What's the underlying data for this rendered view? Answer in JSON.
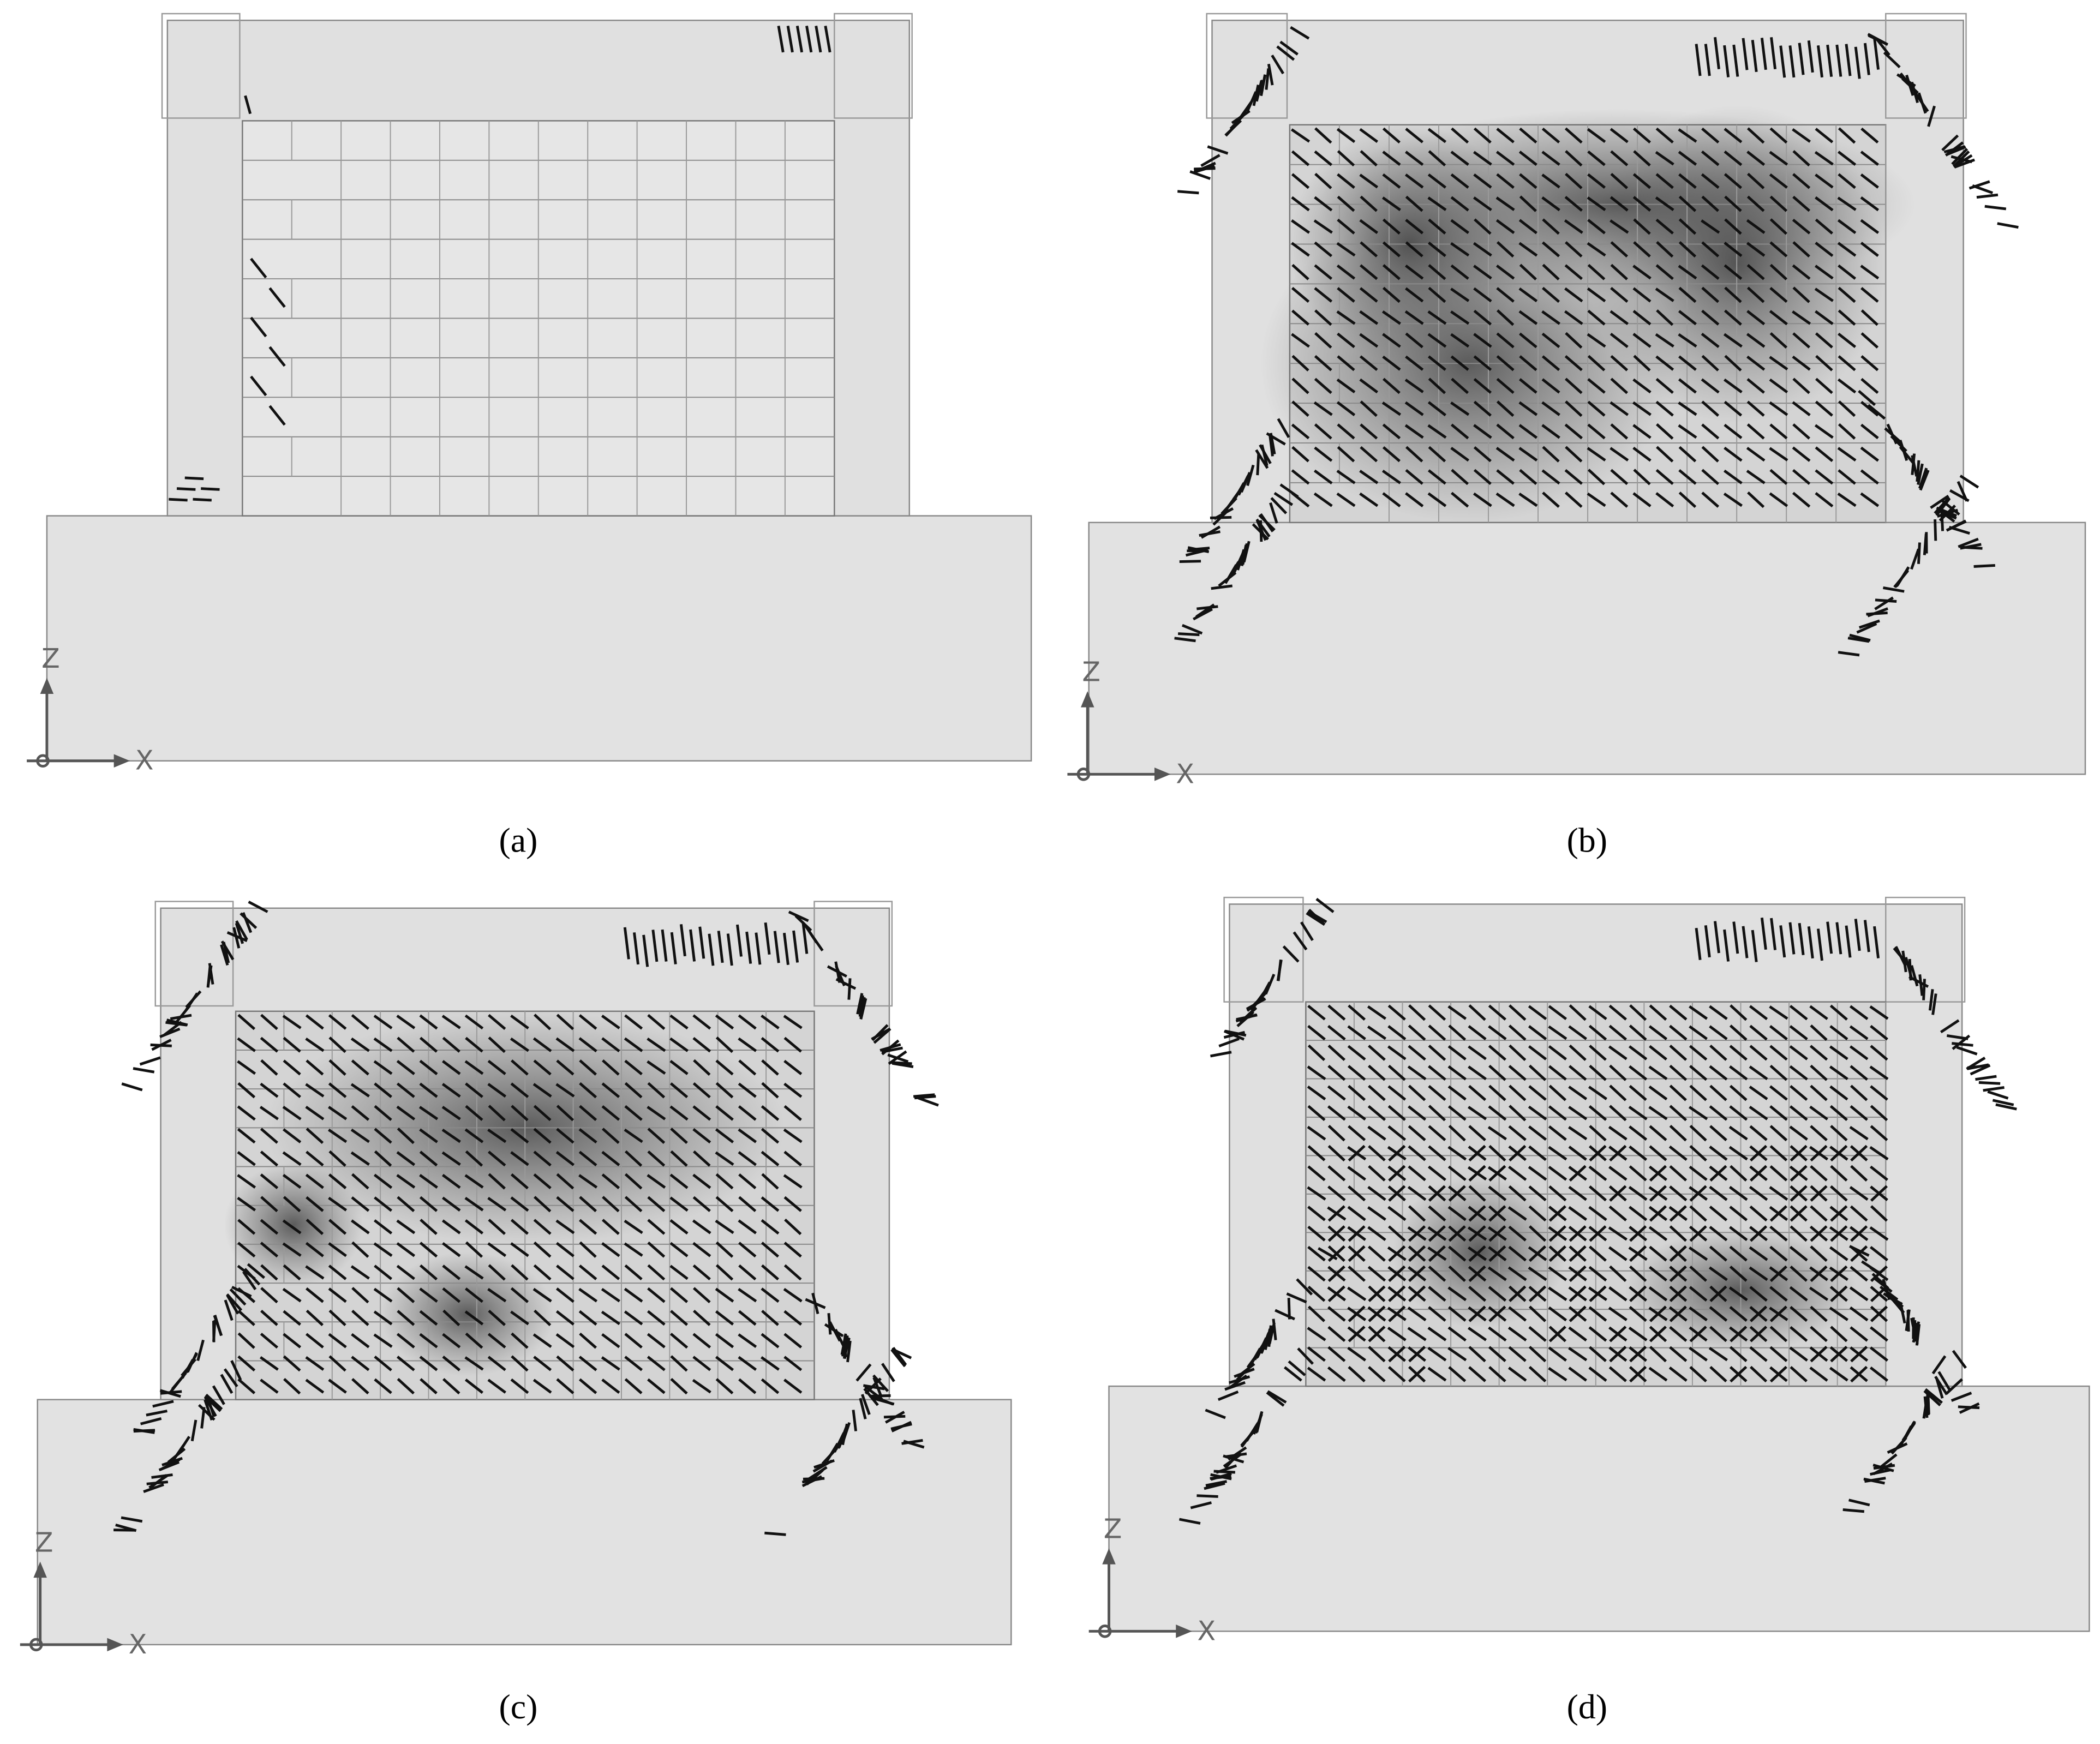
{
  "panels": [
    {
      "caption": "(a)",
      "axis_z": "Z",
      "axis_x": "X"
    },
    {
      "caption": "(b)",
      "axis_z": "Z",
      "axis_x": "X"
    },
    {
      "caption": "(c)",
      "axis_z": "Z",
      "axis_x": "X"
    },
    {
      "caption": "(d)",
      "axis_z": "Z",
      "axis_x": "X"
    }
  ]
}
